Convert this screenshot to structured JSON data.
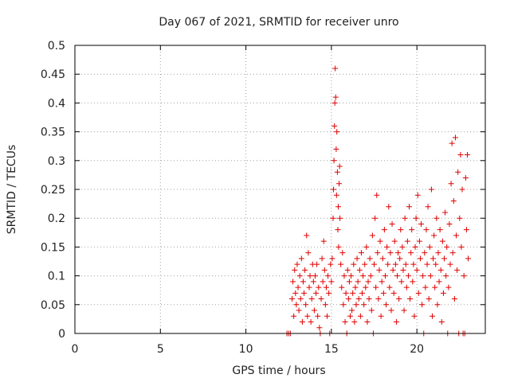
{
  "chart_data": {
    "type": "scatter",
    "title": "Day 067 of 2021, SRMTID for receiver unro",
    "xlabel": "GPS time / hours",
    "ylabel": "SRMTID / TECUs",
    "xlim": [
      0,
      24
    ],
    "ylim": [
      0,
      0.5
    ],
    "xticks": [
      0,
      5,
      10,
      15,
      20
    ],
    "xtick_labels": [
      "0",
      "5",
      "10",
      "15",
      "20"
    ],
    "yticks": [
      0,
      0.05,
      0.1,
      0.15,
      0.2,
      0.25,
      0.3,
      0.35,
      0.4,
      0.45,
      0.5
    ],
    "ytick_labels": [
      "0",
      "0.05",
      "0.1",
      "0.15",
      "0.2",
      "0.25",
      "0.3",
      "0.35",
      "0.4",
      "0.45",
      "0.5"
    ],
    "grid": true,
    "marker": "+",
    "color": "#e00000",
    "series": [
      {
        "name": "SRMTID",
        "points": [
          [
            12.4,
            0.0
          ],
          [
            12.5,
            0.0
          ],
          [
            12.6,
            0.0
          ],
          [
            12.7,
            0.06
          ],
          [
            12.75,
            0.09
          ],
          [
            12.8,
            0.03
          ],
          [
            12.85,
            0.11
          ],
          [
            12.9,
            0.07
          ],
          [
            12.95,
            0.05
          ],
          [
            13.0,
            0.12
          ],
          [
            13.05,
            0.08
          ],
          [
            13.1,
            0.04
          ],
          [
            13.15,
            0.1
          ],
          [
            13.2,
            0.06
          ],
          [
            13.25,
            0.13
          ],
          [
            13.3,
            0.02
          ],
          [
            13.35,
            0.09
          ],
          [
            13.4,
            0.07
          ],
          [
            13.45,
            0.11
          ],
          [
            13.5,
            0.05
          ],
          [
            13.55,
            0.17
          ],
          [
            13.6,
            0.03
          ],
          [
            13.65,
            0.14
          ],
          [
            13.7,
            0.08
          ],
          [
            13.75,
            0.1
          ],
          [
            13.8,
            0.02
          ],
          [
            13.85,
            0.06
          ],
          [
            13.9,
            0.12
          ],
          [
            13.95,
            0.09
          ],
          [
            14.0,
            0.04
          ],
          [
            14.05,
            0.1
          ],
          [
            14.1,
            0.07
          ],
          [
            14.15,
            0.12
          ],
          [
            14.2,
            0.03
          ],
          [
            14.25,
            0.08
          ],
          [
            14.3,
            0.01
          ],
          [
            14.35,
            0.0
          ],
          [
            14.4,
            0.06
          ],
          [
            14.45,
            0.13
          ],
          [
            14.5,
            0.09
          ],
          [
            14.55,
            0.16
          ],
          [
            14.6,
            0.11
          ],
          [
            14.65,
            0.05
          ],
          [
            14.7,
            0.08
          ],
          [
            14.75,
            0.03
          ],
          [
            14.8,
            0.1
          ],
          [
            14.85,
            0.07
          ],
          [
            14.9,
            0.0
          ],
          [
            14.95,
            0.12
          ],
          [
            15.0,
            0.09
          ],
          [
            15.05,
            0.13
          ],
          [
            15.1,
            0.2
          ],
          [
            15.12,
            0.25
          ],
          [
            15.15,
            0.3
          ],
          [
            15.18,
            0.36
          ],
          [
            15.2,
            0.4
          ],
          [
            15.22,
            0.46
          ],
          [
            15.25,
            0.41
          ],
          [
            15.28,
            0.32
          ],
          [
            15.3,
            0.24
          ],
          [
            15.32,
            0.35
          ],
          [
            15.35,
            0.28
          ],
          [
            15.38,
            0.18
          ],
          [
            15.4,
            0.22
          ],
          [
            15.42,
            0.15
          ],
          [
            15.45,
            0.26
          ],
          [
            15.48,
            0.29
          ],
          [
            15.5,
            0.2
          ],
          [
            15.55,
            0.12
          ],
          [
            15.6,
            0.08
          ],
          [
            15.65,
            0.14
          ],
          [
            15.7,
            0.05
          ],
          [
            15.75,
            0.1
          ],
          [
            15.8,
            0.02
          ],
          [
            15.85,
            0.07
          ],
          [
            15.9,
            0.0
          ],
          [
            15.95,
            0.11
          ],
          [
            16.0,
            0.06
          ],
          [
            16.05,
            0.09
          ],
          [
            16.1,
            0.03
          ],
          [
            16.15,
            0.1
          ],
          [
            16.2,
            0.04
          ],
          [
            16.25,
            0.07
          ],
          [
            16.3,
            0.12
          ],
          [
            16.35,
            0.02
          ],
          [
            16.4,
            0.08
          ],
          [
            16.45,
            0.05
          ],
          [
            16.5,
            0.13
          ],
          [
            16.55,
            0.09
          ],
          [
            16.6,
            0.06
          ],
          [
            16.65,
            0.11
          ],
          [
            16.7,
            0.03
          ],
          [
            16.75,
            0.14
          ],
          [
            16.8,
            0.07
          ],
          [
            16.85,
            0.1
          ],
          [
            16.9,
            0.05
          ],
          [
            16.95,
            0.12
          ],
          [
            17.0,
            0.08
          ],
          [
            17.05,
            0.15
          ],
          [
            17.1,
            0.02
          ],
          [
            17.15,
            0.09
          ],
          [
            17.2,
            0.06
          ],
          [
            17.25,
            0.13
          ],
          [
            17.3,
            0.1
          ],
          [
            17.35,
            0.04
          ],
          [
            17.4,
            0.17
          ],
          [
            17.45,
            0.0
          ],
          [
            17.5,
            0.12
          ],
          [
            17.55,
            0.2
          ],
          [
            17.6,
            0.08
          ],
          [
            17.65,
            0.24
          ],
          [
            17.7,
            0.14
          ],
          [
            17.75,
            0.06
          ],
          [
            17.8,
            0.11
          ],
          [
            17.85,
            0.16
          ],
          [
            17.9,
            0.03
          ],
          [
            17.95,
            0.09
          ],
          [
            18.0,
            0.13
          ],
          [
            18.05,
            0.07
          ],
          [
            18.1,
            0.18
          ],
          [
            18.15,
            0.1
          ],
          [
            18.2,
            0.05
          ],
          [
            18.25,
            0.15
          ],
          [
            18.3,
            0.12
          ],
          [
            18.35,
            0.22
          ],
          [
            18.4,
            0.08
          ],
          [
            18.45,
            0.14
          ],
          [
            18.5,
            0.04
          ],
          [
            18.55,
            0.19
          ],
          [
            18.6,
            0.11
          ],
          [
            18.65,
            0.07
          ],
          [
            18.7,
            0.16
          ],
          [
            18.75,
            0.12
          ],
          [
            18.8,
            0.02
          ],
          [
            18.85,
            0.1
          ],
          [
            18.9,
            0.14
          ],
          [
            18.95,
            0.06
          ],
          [
            19.0,
            0.13
          ],
          [
            19.05,
            0.18
          ],
          [
            19.1,
            0.09
          ],
          [
            19.15,
            0.15
          ],
          [
            19.2,
            0.11
          ],
          [
            19.25,
            0.04
          ],
          [
            19.3,
            0.2
          ],
          [
            19.35,
            0.12
          ],
          [
            19.4,
            0.08
          ],
          [
            19.45,
            0.16
          ],
          [
            19.5,
            0.1
          ],
          [
            19.55,
            0.22
          ],
          [
            19.6,
            0.06
          ],
          [
            19.65,
            0.14
          ],
          [
            19.7,
            0.18
          ],
          [
            19.75,
            0.09
          ],
          [
            19.8,
            0.12
          ],
          [
            19.85,
            0.03
          ],
          [
            19.9,
            0.15
          ],
          [
            19.95,
            0.2
          ],
          [
            20.0,
            0.11
          ],
          [
            20.05,
            0.24
          ],
          [
            20.1,
            0.07
          ],
          [
            20.15,
            0.16
          ],
          [
            20.2,
            0.13
          ],
          [
            20.25,
            0.19
          ],
          [
            20.3,
            0.05
          ],
          [
            20.35,
            0.1
          ],
          [
            20.4,
            0.0
          ],
          [
            20.45,
            0.14
          ],
          [
            20.5,
            0.08
          ],
          [
            20.55,
            0.18
          ],
          [
            20.6,
            0.12
          ],
          [
            20.65,
            0.22
          ],
          [
            20.7,
            0.06
          ],
          [
            20.75,
            0.15
          ],
          [
            20.8,
            0.1
          ],
          [
            20.85,
            0.25
          ],
          [
            20.9,
            0.03
          ],
          [
            20.95,
            0.13
          ],
          [
            21.0,
            0.17
          ],
          [
            21.05,
            0.08
          ],
          [
            21.1,
            0.12
          ],
          [
            21.15,
            0.2
          ],
          [
            21.2,
            0.05
          ],
          [
            21.25,
            0.14
          ],
          [
            21.3,
            0.09
          ],
          [
            21.35,
            0.18
          ],
          [
            21.4,
            0.11
          ],
          [
            21.45,
            0.02
          ],
          [
            21.5,
            0.16
          ],
          [
            21.55,
            0.07
          ],
          [
            21.6,
            0.13
          ],
          [
            21.65,
            0.21
          ],
          [
            21.7,
            0.1
          ],
          [
            21.75,
            0.15
          ],
          [
            21.8,
            0.0
          ],
          [
            21.85,
            0.08
          ],
          [
            21.9,
            0.19
          ],
          [
            21.95,
            0.12
          ],
          [
            22.0,
            0.26
          ],
          [
            22.05,
            0.33
          ],
          [
            22.1,
            0.14
          ],
          [
            22.15,
            0.23
          ],
          [
            22.2,
            0.06
          ],
          [
            22.25,
            0.34
          ],
          [
            22.3,
            0.17
          ],
          [
            22.35,
            0.11
          ],
          [
            22.4,
            0.28
          ],
          [
            22.45,
            0.0
          ],
          [
            22.5,
            0.2
          ],
          [
            22.55,
            0.31
          ],
          [
            22.6,
            0.15
          ],
          [
            22.65,
            0.25
          ],
          [
            22.7,
            0.0
          ],
          [
            22.75,
            0.1
          ],
          [
            22.8,
            0.0
          ],
          [
            22.85,
            0.27
          ],
          [
            22.9,
            0.18
          ],
          [
            22.95,
            0.31
          ],
          [
            23.0,
            0.13
          ]
        ]
      }
    ]
  }
}
